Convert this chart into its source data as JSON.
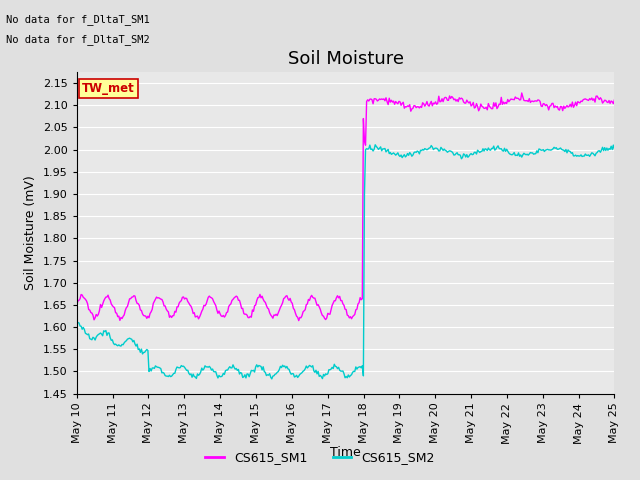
{
  "title": "Soil Moisture",
  "xlabel": "Time",
  "ylabel": "Soil Moisture (mV)",
  "ylim": [
    1.45,
    2.175
  ],
  "yticks": [
    1.45,
    1.5,
    1.55,
    1.6,
    1.65,
    1.7,
    1.75,
    1.8,
    1.85,
    1.9,
    1.95,
    2.0,
    2.05,
    2.1,
    2.15
  ],
  "background_color": "#e0e0e0",
  "plot_bg_color": "#e8e8e8",
  "line1_color": "#ff00ff",
  "line2_color": "#00cccc",
  "line1_label": "CS615_SM1",
  "line2_label": "CS615_SM2",
  "annotation_text1": "No data for f_DltaT_SM1",
  "annotation_text2": "No data for f_DltaT_SM2",
  "tw_met_text": "TW_met",
  "tw_met_color": "#cc0000",
  "tw_met_bg": "#ffff99",
  "tw_met_border": "#cc0000",
  "title_fontsize": 13,
  "axis_fontsize": 9,
  "tick_fontsize": 8,
  "num_points": 500,
  "jump_day": 8.0,
  "total_days": 15
}
